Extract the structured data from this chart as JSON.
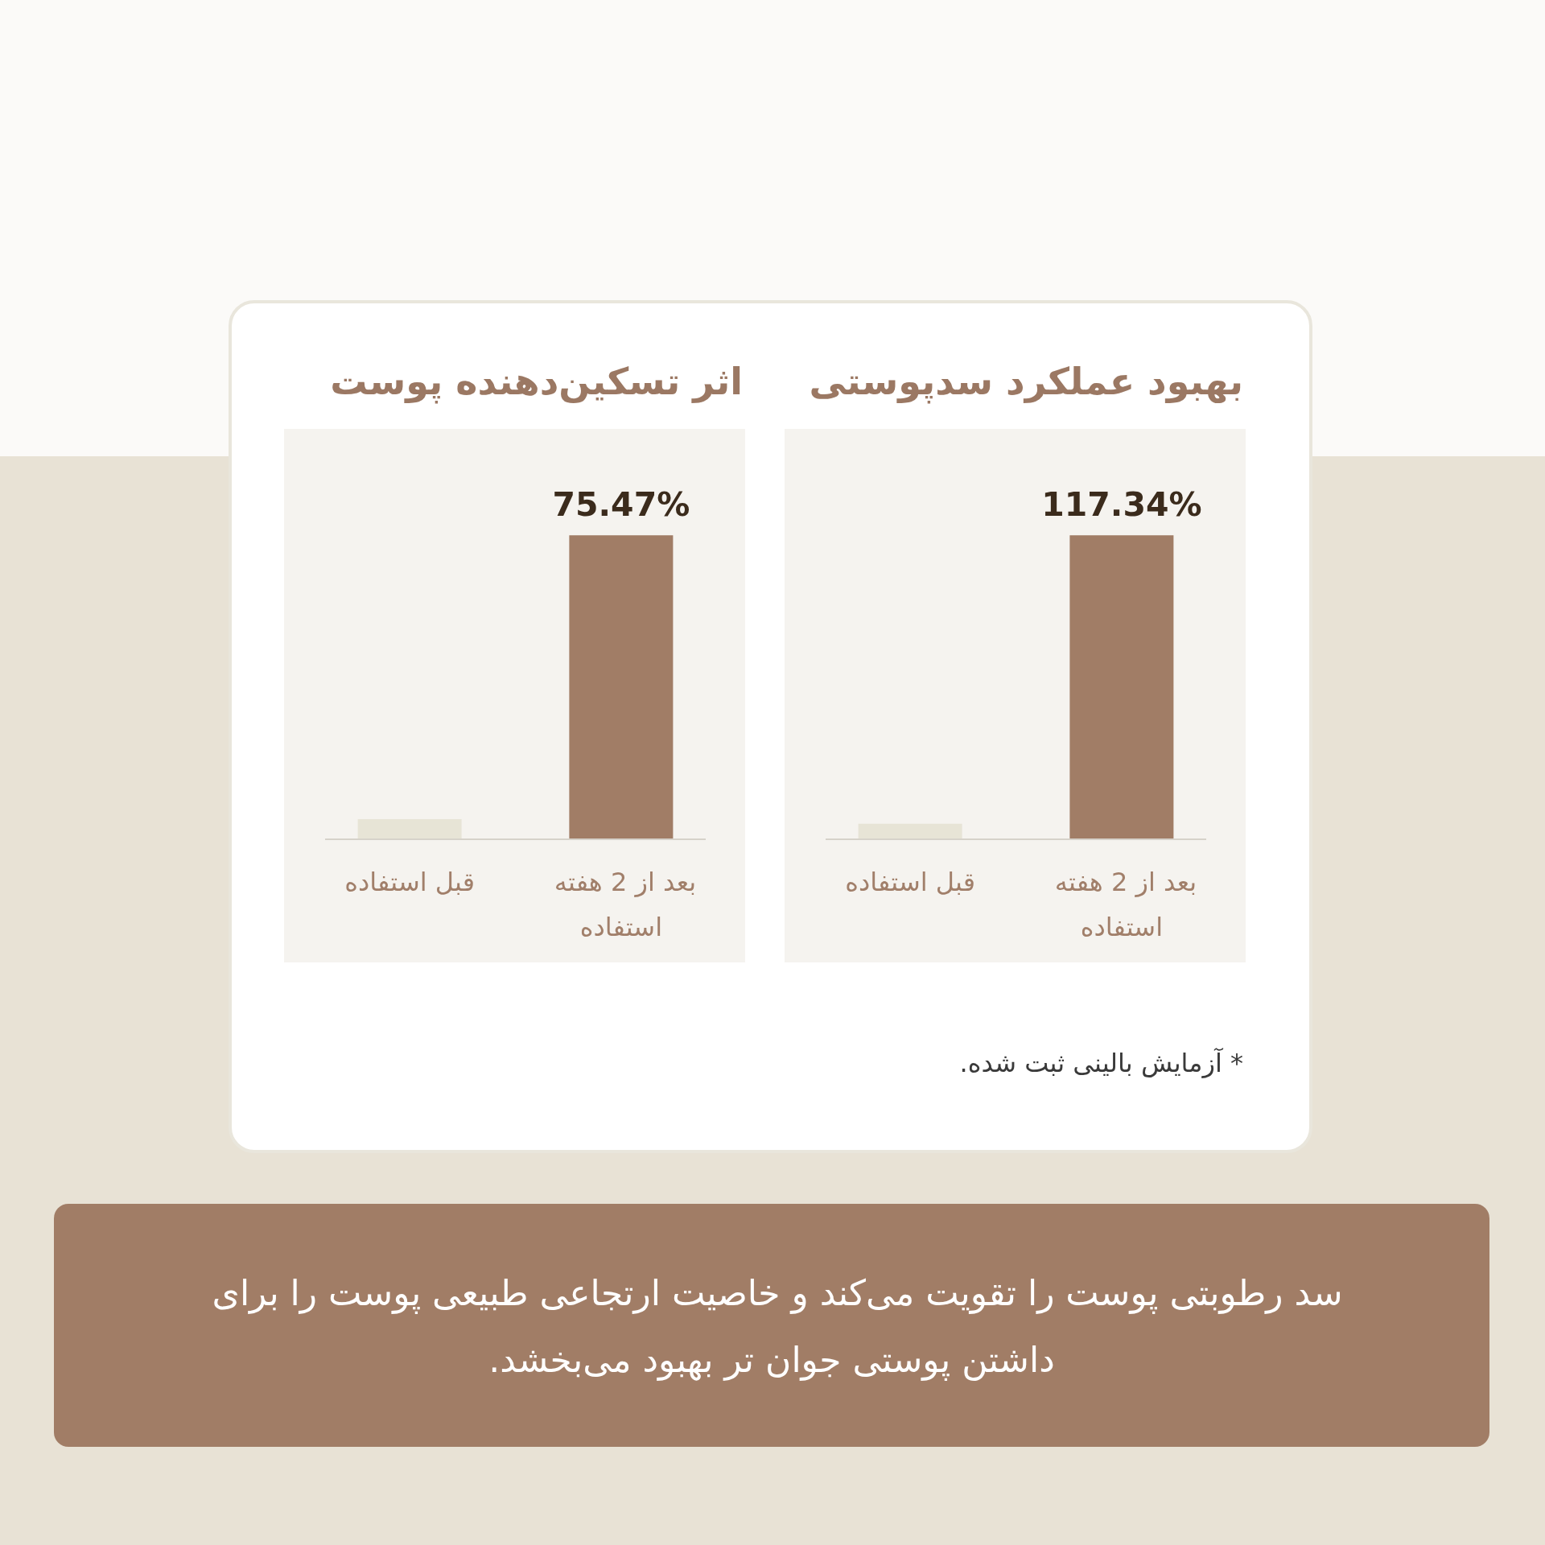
{
  "chart_data": [
    {
      "type": "bar",
      "title": "بهبود عملکرد سدپوستی",
      "categories": [
        "قبل استفاده",
        "بعد از 2 هفته استفاده"
      ],
      "values": [
        6,
        117.34
      ],
      "colors": [
        "#e7e4d6",
        "#a17d66"
      ],
      "value_labels": [
        null,
        "117.34%"
      ],
      "annotations": [
        "* آزمایش بالینی ثبت شده.",
        "سد رطوبتی پوست را تقویت می‌کند و خاصیت ارتجاعی طبیعی پوست را برای داشتن پوستی جوان تر بهبود می‌بخشد."
      ]
    },
    {
      "type": "bar",
      "title": "اثر تسکین‌دهنده پوست",
      "categories": [
        "قبل استفاده",
        "بعد از 2 هفته استفاده"
      ],
      "values": [
        5,
        75.47
      ],
      "colors": [
        "#e7e4d6",
        "#a17d66"
      ],
      "value_labels": [
        null,
        "75.47%"
      ]
    }
  ]
}
